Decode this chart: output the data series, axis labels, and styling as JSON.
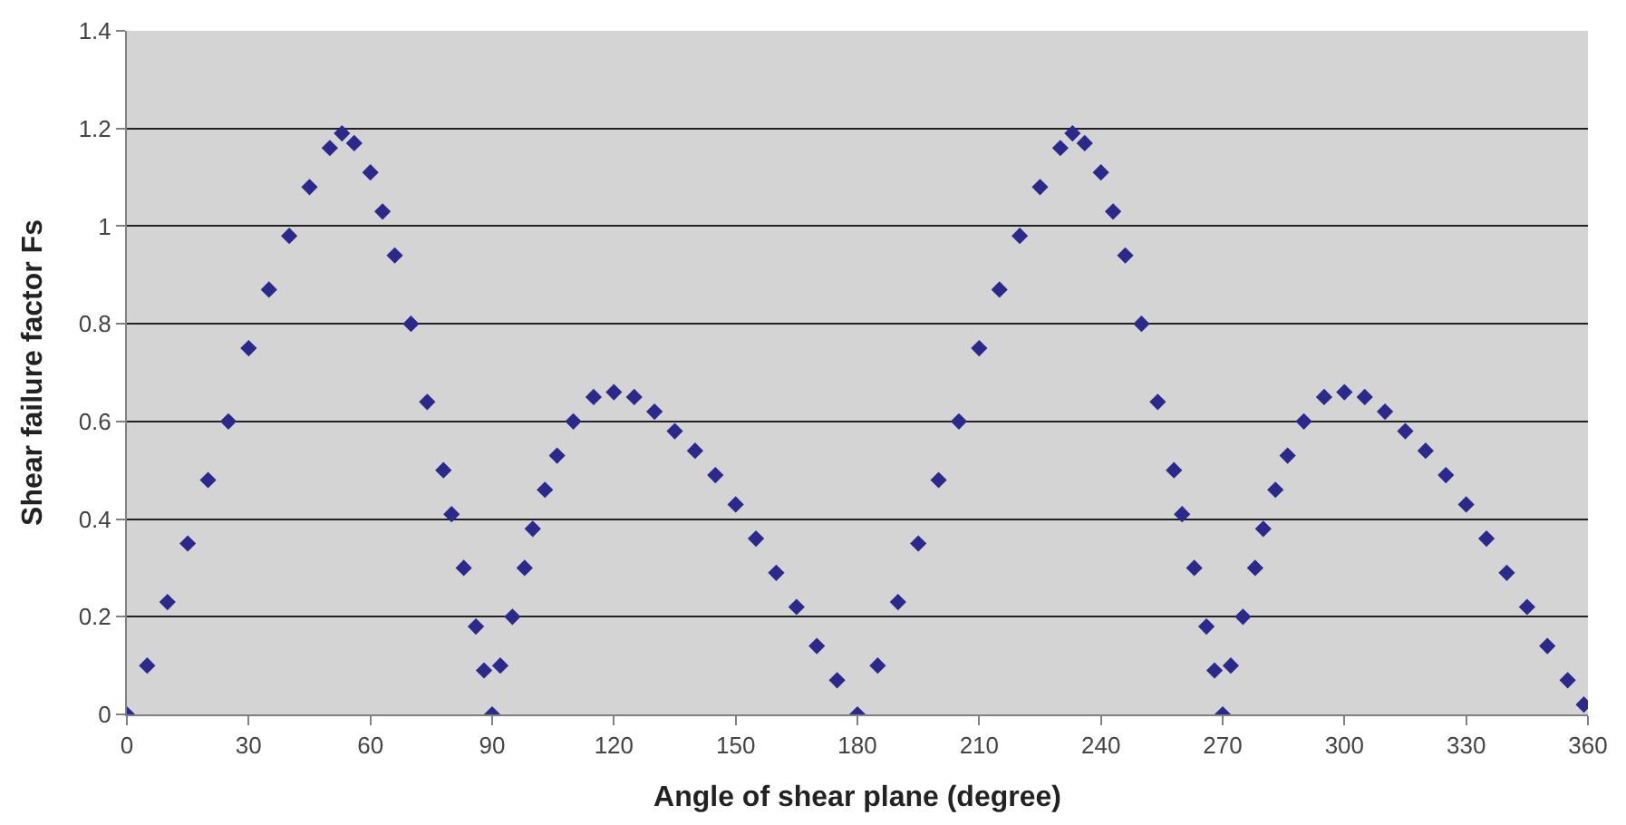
{
  "chart_data": {
    "type": "scatter",
    "xlabel": "Angle of shear plane (degree)",
    "ylabel": "Shear failure factor Fs",
    "x": [
      0,
      5,
      10,
      15,
      20,
      25,
      30,
      35,
      40,
      45,
      50,
      53,
      56,
      60,
      63,
      66,
      70,
      74,
      78,
      80,
      83,
      86,
      88,
      90,
      92,
      95,
      98,
      100,
      103,
      106,
      110,
      115,
      120,
      125,
      130,
      135,
      140,
      145,
      150,
      155,
      160,
      165,
      170,
      175,
      180,
      185,
      190,
      195,
      200,
      205,
      210,
      215,
      220,
      225,
      230,
      233,
      236,
      240,
      243,
      246,
      250,
      254,
      258,
      260,
      263,
      266,
      268,
      270,
      272,
      275,
      278,
      280,
      283,
      286,
      290,
      295,
      300,
      305,
      310,
      315,
      320,
      325,
      330,
      335,
      340,
      345,
      350,
      355,
      359
    ],
    "series": [
      {
        "color": "#2b2a8c",
        "values": [
          0,
          0.1,
          0.23,
          0.35,
          0.48,
          0.6,
          0.75,
          0.87,
          0.98,
          1.08,
          1.16,
          1.19,
          1.17,
          1.11,
          1.03,
          0.94,
          0.8,
          0.64,
          0.5,
          0.41,
          0.3,
          0.18,
          0.09,
          0,
          0.1,
          0.2,
          0.3,
          0.38,
          0.46,
          0.53,
          0.6,
          0.65,
          0.66,
          0.65,
          0.62,
          0.58,
          0.54,
          0.49,
          0.43,
          0.36,
          0.29,
          0.22,
          0.14,
          0.07,
          0,
          0.1,
          0.23,
          0.35,
          0.48,
          0.6,
          0.75,
          0.87,
          0.98,
          1.08,
          1.16,
          1.19,
          1.17,
          1.11,
          1.03,
          0.94,
          0.8,
          0.64,
          0.5,
          0.41,
          0.3,
          0.18,
          0.09,
          0,
          0.1,
          0.2,
          0.3,
          0.38,
          0.46,
          0.53,
          0.6,
          0.65,
          0.66,
          0.65,
          0.62,
          0.58,
          0.54,
          0.49,
          0.43,
          0.36,
          0.29,
          0.22,
          0.14,
          0.07,
          0.02
        ]
      }
    ],
    "xlim": [
      0,
      360
    ],
    "xticks": [
      0,
      30,
      60,
      90,
      120,
      150,
      180,
      210,
      240,
      270,
      300,
      330,
      360
    ],
    "ylim": [
      0,
      1.4
    ],
    "yticks": [
      0,
      0.2,
      0.4,
      0.6,
      0.8,
      1,
      1.2,
      1.4
    ],
    "grid": "y",
    "marker": "diamond"
  }
}
